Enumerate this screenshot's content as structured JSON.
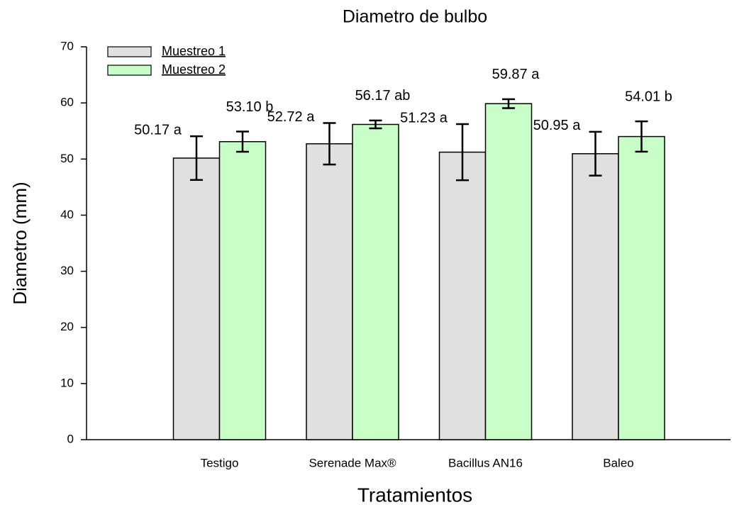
{
  "chart_data": {
    "type": "bar",
    "title": "Diametro de bulbo",
    "xlabel": "Tratamientos",
    "ylabel": "Diametro (mm)",
    "categories": [
      "Testigo",
      "Serenade Max®",
      "Bacillus AN16",
      "Baleo"
    ],
    "series": [
      {
        "name": "Muestreo 1",
        "color": "#e0e0e0",
        "values": [
          50.17,
          52.72,
          51.23,
          50.95
        ],
        "errors": [
          3.9,
          3.7,
          5.0,
          3.9
        ],
        "value_labels": [
          "50.17 a",
          "52.72 a",
          "51.23 a",
          "50.95 a"
        ]
      },
      {
        "name": "Muestreo 2",
        "color": "#c8ffc8",
        "values": [
          53.1,
          56.17,
          59.87,
          54.01
        ],
        "errors": [
          1.8,
          0.7,
          0.8,
          2.7
        ],
        "value_labels": [
          "53.10 b",
          "56.17 ab",
          "59.87 a",
          "54.01 b"
        ]
      }
    ],
    "ylim": [
      0,
      70
    ],
    "yticks": [
      0,
      10,
      20,
      30,
      40,
      50,
      60,
      70
    ],
    "grid": false,
    "legend": "upper left"
  }
}
